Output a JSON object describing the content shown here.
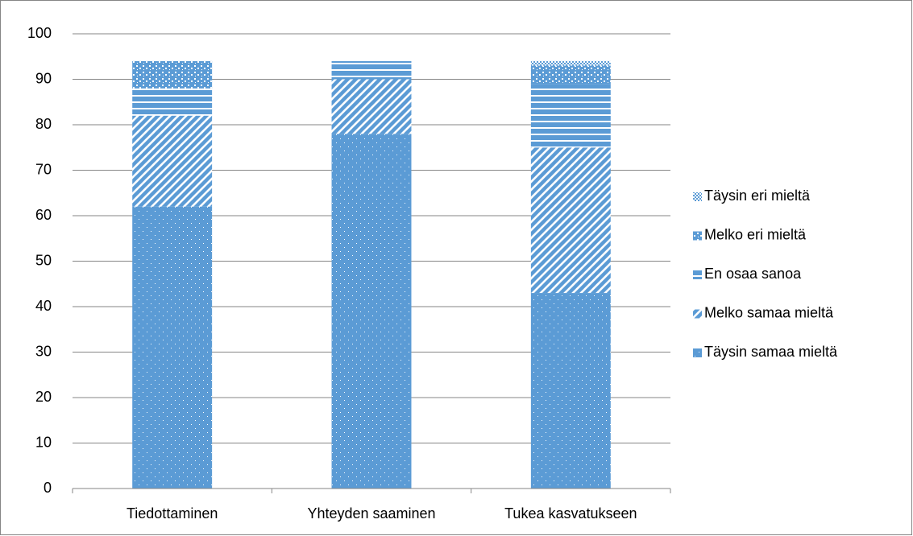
{
  "chart_data": {
    "type": "stacked_bar",
    "categories": [
      "Tiedottaminen",
      "Yhteyden saaminen",
      "Tukea kasvatukseen"
    ],
    "series": [
      {
        "name": "Täysin samaa mieltä",
        "color": "#5b9bd5",
        "pattern": "dots",
        "values": [
          62,
          78,
          43
        ]
      },
      {
        "name": "Melko samaa mieltä",
        "color": "#5b9bd5",
        "pattern": "diagonal",
        "values": [
          20,
          12,
          32
        ]
      },
      {
        "name": "En osaa sanoa",
        "color": "#5b9bd5",
        "pattern": "horizontal",
        "values": [
          6,
          4,
          14
        ]
      },
      {
        "name": "Melko eri mieltä",
        "color": "#5b9bd5",
        "pattern": "confetti",
        "values": [
          6,
          0,
          4
        ]
      },
      {
        "name": "Täysin eri mieltä",
        "color": "#5b9bd5",
        "pattern": "checker",
        "values": [
          0,
          0,
          1
        ]
      }
    ],
    "ylim": [
      0,
      100
    ],
    "yticks": [
      0,
      10,
      20,
      30,
      40,
      50,
      60,
      70,
      80,
      90,
      100
    ],
    "grid": true,
    "legend": "right"
  }
}
